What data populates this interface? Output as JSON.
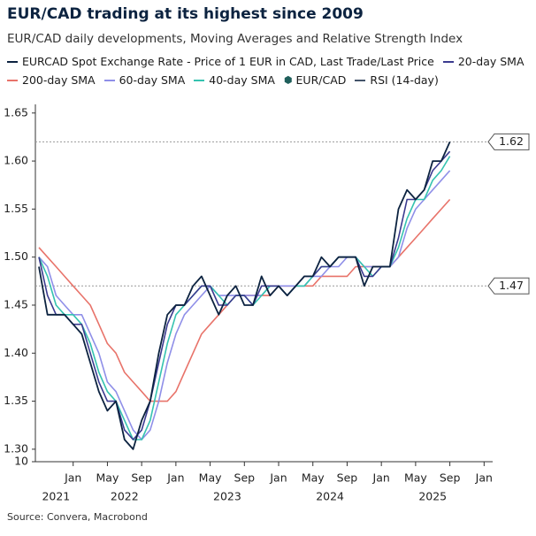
{
  "chart_data": {
    "type": "line",
    "title": "EUR/CAD trading at its highest since 2009",
    "subtitle": "EUR/CAD daily developments, Moving Averages and Relative Strength Index",
    "source": "Source: Convera, Macrobond",
    "x": [
      "2021-09",
      "2021-10",
      "2021-11",
      "2021-12",
      "2022-01",
      "2022-02",
      "2022-03",
      "2022-04",
      "2022-05",
      "2022-06",
      "2022-07",
      "2022-08",
      "2022-09",
      "2022-10",
      "2022-11",
      "2022-12",
      "2023-01",
      "2023-02",
      "2023-03",
      "2023-04",
      "2023-05",
      "2023-06",
      "2023-07",
      "2023-08",
      "2023-09",
      "2023-10",
      "2023-11",
      "2023-12",
      "2024-01",
      "2024-02",
      "2024-03",
      "2024-04",
      "2024-05",
      "2024-06",
      "2024-07",
      "2024-08",
      "2024-09",
      "2024-10",
      "2024-11",
      "2024-12",
      "2025-01",
      "2025-02",
      "2025-03",
      "2025-04",
      "2025-05",
      "2025-06",
      "2025-07",
      "2025-08",
      "2025-09"
    ],
    "xlim": [
      "2021-09",
      "2026-02"
    ],
    "xticks": [
      {
        "value": "2022-01",
        "label": "Jan"
      },
      {
        "value": "2022-05",
        "label": "May"
      },
      {
        "value": "2022-09",
        "label": "Sep"
      },
      {
        "value": "2023-01",
        "label": "Jan"
      },
      {
        "value": "2023-05",
        "label": "May"
      },
      {
        "value": "2023-09",
        "label": "Sep"
      },
      {
        "value": "2024-01",
        "label": "Jan"
      },
      {
        "value": "2024-05",
        "label": "May"
      },
      {
        "value": "2024-09",
        "label": "Sep"
      },
      {
        "value": "2025-01",
        "label": "Jan"
      },
      {
        "value": "2025-05",
        "label": "May"
      },
      {
        "value": "2025-09",
        "label": "Sep"
      },
      {
        "value": "2026-01",
        "label": "Jan"
      }
    ],
    "year_labels": [
      "2021",
      "2022",
      "2023",
      "2024",
      "2025"
    ],
    "ylim": [
      1.287,
      1.659
    ],
    "yticks": [
      {
        "value": 1.3,
        "label": "1.30"
      },
      1.35,
      {
        "value": 1.4,
        "label": "1.40"
      },
      1.45,
      {
        "value": 1.5,
        "label": "1.50"
      },
      1.55,
      {
        "value": 1.6,
        "label": "1.60"
      },
      1.65
    ],
    "y2lim": [
      10,
      20
    ],
    "y2ticks": [
      10
    ],
    "series": [
      {
        "name": "EURCAD Spot Exchange Rate - Price of 1 EUR in CAD, Last Trade/Last Price",
        "color": "#0c2340",
        "values": [
          1.49,
          1.44,
          1.44,
          1.44,
          1.43,
          1.42,
          1.39,
          1.36,
          1.34,
          1.35,
          1.31,
          1.3,
          1.33,
          1.35,
          1.4,
          1.44,
          1.45,
          1.45,
          1.47,
          1.48,
          1.46,
          1.44,
          1.46,
          1.47,
          1.45,
          1.45,
          1.48,
          1.46,
          1.47,
          1.46,
          1.47,
          1.48,
          1.48,
          1.5,
          1.49,
          1.5,
          1.5,
          1.5,
          1.47,
          1.49,
          1.49,
          1.49,
          1.55,
          1.57,
          1.56,
          1.57,
          1.6,
          1.6,
          1.62
        ]
      },
      {
        "name": "20-day SMA",
        "color": "#3b3b8f",
        "values": [
          1.5,
          1.46,
          1.44,
          1.44,
          1.43,
          1.43,
          1.4,
          1.37,
          1.35,
          1.35,
          1.32,
          1.31,
          1.32,
          1.35,
          1.39,
          1.43,
          1.45,
          1.45,
          1.46,
          1.47,
          1.47,
          1.45,
          1.45,
          1.46,
          1.46,
          1.45,
          1.47,
          1.47,
          1.47,
          1.46,
          1.47,
          1.48,
          1.48,
          1.49,
          1.49,
          1.5,
          1.5,
          1.5,
          1.48,
          1.48,
          1.49,
          1.49,
          1.52,
          1.56,
          1.56,
          1.57,
          1.59,
          1.6,
          1.61
        ]
      },
      {
        "name": "200-day SMA",
        "color": "#e8736a",
        "values": [
          1.51,
          1.5,
          1.49,
          1.48,
          1.47,
          1.46,
          1.45,
          1.43,
          1.41,
          1.4,
          1.38,
          1.37,
          1.36,
          1.35,
          1.35,
          1.35,
          1.36,
          1.38,
          1.4,
          1.42,
          1.43,
          1.44,
          1.45,
          1.46,
          1.46,
          1.46,
          1.46,
          1.46,
          1.47,
          1.47,
          1.47,
          1.47,
          1.47,
          1.48,
          1.48,
          1.48,
          1.48,
          1.49,
          1.49,
          1.49,
          1.49,
          1.49,
          1.5,
          1.51,
          1.52,
          1.53,
          1.54,
          1.55,
          1.56
        ]
      },
      {
        "name": "60-day SMA",
        "color": "#8f8fe8",
        "values": [
          1.5,
          1.49,
          1.46,
          1.45,
          1.44,
          1.44,
          1.42,
          1.4,
          1.37,
          1.36,
          1.34,
          1.32,
          1.31,
          1.32,
          1.35,
          1.39,
          1.42,
          1.44,
          1.45,
          1.46,
          1.47,
          1.46,
          1.46,
          1.46,
          1.46,
          1.46,
          1.46,
          1.47,
          1.47,
          1.47,
          1.47,
          1.47,
          1.48,
          1.48,
          1.49,
          1.49,
          1.5,
          1.5,
          1.49,
          1.49,
          1.49,
          1.49,
          1.5,
          1.53,
          1.55,
          1.56,
          1.57,
          1.58,
          1.59
        ]
      },
      {
        "name": "40-day SMA",
        "color": "#35c3b0",
        "values": [
          1.5,
          1.48,
          1.45,
          1.44,
          1.44,
          1.43,
          1.41,
          1.38,
          1.36,
          1.35,
          1.33,
          1.31,
          1.31,
          1.33,
          1.37,
          1.41,
          1.44,
          1.45,
          1.46,
          1.47,
          1.47,
          1.46,
          1.45,
          1.46,
          1.46,
          1.45,
          1.46,
          1.47,
          1.47,
          1.46,
          1.47,
          1.47,
          1.48,
          1.49,
          1.49,
          1.5,
          1.5,
          1.5,
          1.49,
          1.48,
          1.49,
          1.49,
          1.51,
          1.54,
          1.56,
          1.56,
          1.58,
          1.59,
          1.605
        ]
      },
      {
        "name": "RSI (14-day)",
        "color": "#44546a",
        "axis": "y2",
        "values": [
          null,
          null,
          null,
          null,
          null,
          null,
          null,
          null,
          null,
          null,
          null,
          null,
          null,
          null,
          null,
          null,
          null,
          null,
          null,
          null,
          null,
          null,
          null,
          null,
          null,
          null,
          null,
          null,
          null,
          null,
          null,
          null,
          null,
          null,
          null,
          null,
          null,
          null,
          null,
          null,
          null,
          null,
          null,
          null,
          null,
          null,
          null,
          null,
          null
        ]
      }
    ],
    "value_tags": {
      "name": "EUR/CAD",
      "color": "#1f5f5b",
      "values": [
        1.62,
        1.47
      ]
    }
  }
}
